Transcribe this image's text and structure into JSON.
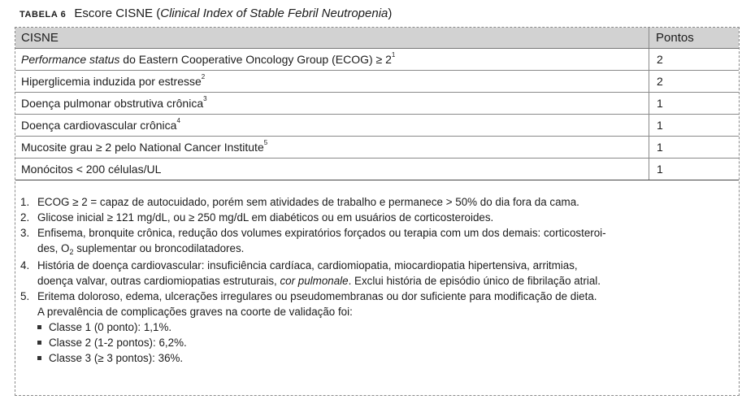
{
  "caption": {
    "label": "TABELA 6",
    "title": "Escore CISNE",
    "subtitle_open": "(",
    "subtitle": "Clinical Index of Stable Febril Neutropenia",
    "subtitle_close": ")"
  },
  "table": {
    "headers": [
      "CISNE",
      "Pontos"
    ],
    "rows": [
      {
        "label_italic": "Performance status",
        "label": " do Eastern Cooperative Oncology Group (ECOG) ≥ 2",
        "sup": "1",
        "points": "2"
      },
      {
        "label_italic": "",
        "label": "Hiperglicemia induzida por estresse",
        "sup": "2",
        "points": "2"
      },
      {
        "label_italic": "",
        "label": "Doença pulmonar obstrutiva crônica",
        "sup": "3",
        "points": "1"
      },
      {
        "label_italic": "",
        "label": "Doença cardiovascular crônica",
        "sup": "4",
        "points": "1"
      },
      {
        "label_italic": "",
        "label": "Mucosite grau ≥ 2 pelo National Cancer Institute",
        "sup": "5",
        "points": "1"
      },
      {
        "label_italic": "",
        "label": "Monócitos < 200 células/UL",
        "sup": "",
        "points": "1"
      }
    ]
  },
  "notes": {
    "n1": {
      "num": "1.",
      "l1": "ECOG ≥ 2 = capaz de autocuidado, porém sem atividades de trabalho e permanece > 50% do dia fora da cama."
    },
    "n2": {
      "num": "2.",
      "l1": "Glicose inicial ≥ 121 mg/dL, ou ≥ 250 mg/dL em diabéticos ou em usuários de corticosteroides."
    },
    "n3": {
      "num": "3.",
      "l1": "Enfisema, bronquite crônica, redução dos volumes expiratórios forçados ou terapia com um dos demais: corticosteroi-",
      "l2a": "des, O",
      "l2sub": "2",
      "l2b": " suplementar ou broncodilatadores."
    },
    "n4": {
      "num": "4.",
      "l1": "História de doença cardiovascular: insuficiência cardíaca, cardiomiopatia, miocardiopatia hipertensiva, arritmias,",
      "l2a": "doença valvar, outras cardiomiopatias estruturais, ",
      "l2ital": "cor pulmonale",
      "l2b": ". Exclui história de episódio único de fibrilação atrial."
    },
    "n5": {
      "num": "5.",
      "l1": "Eritema doloroso, edema, ulcerações irregulares ou pseudomembranas ou dor suficiente para modificação de dieta."
    },
    "prevalence": "A prevalência de complicações graves na coorte de validação foi:",
    "classes": [
      "Classe 1 (0 ponto): 1,1%.",
      "Classe 2 (1-2 pontos): 6,2%.",
      "Classe 3 (≥ 3 pontos): 36%."
    ]
  }
}
